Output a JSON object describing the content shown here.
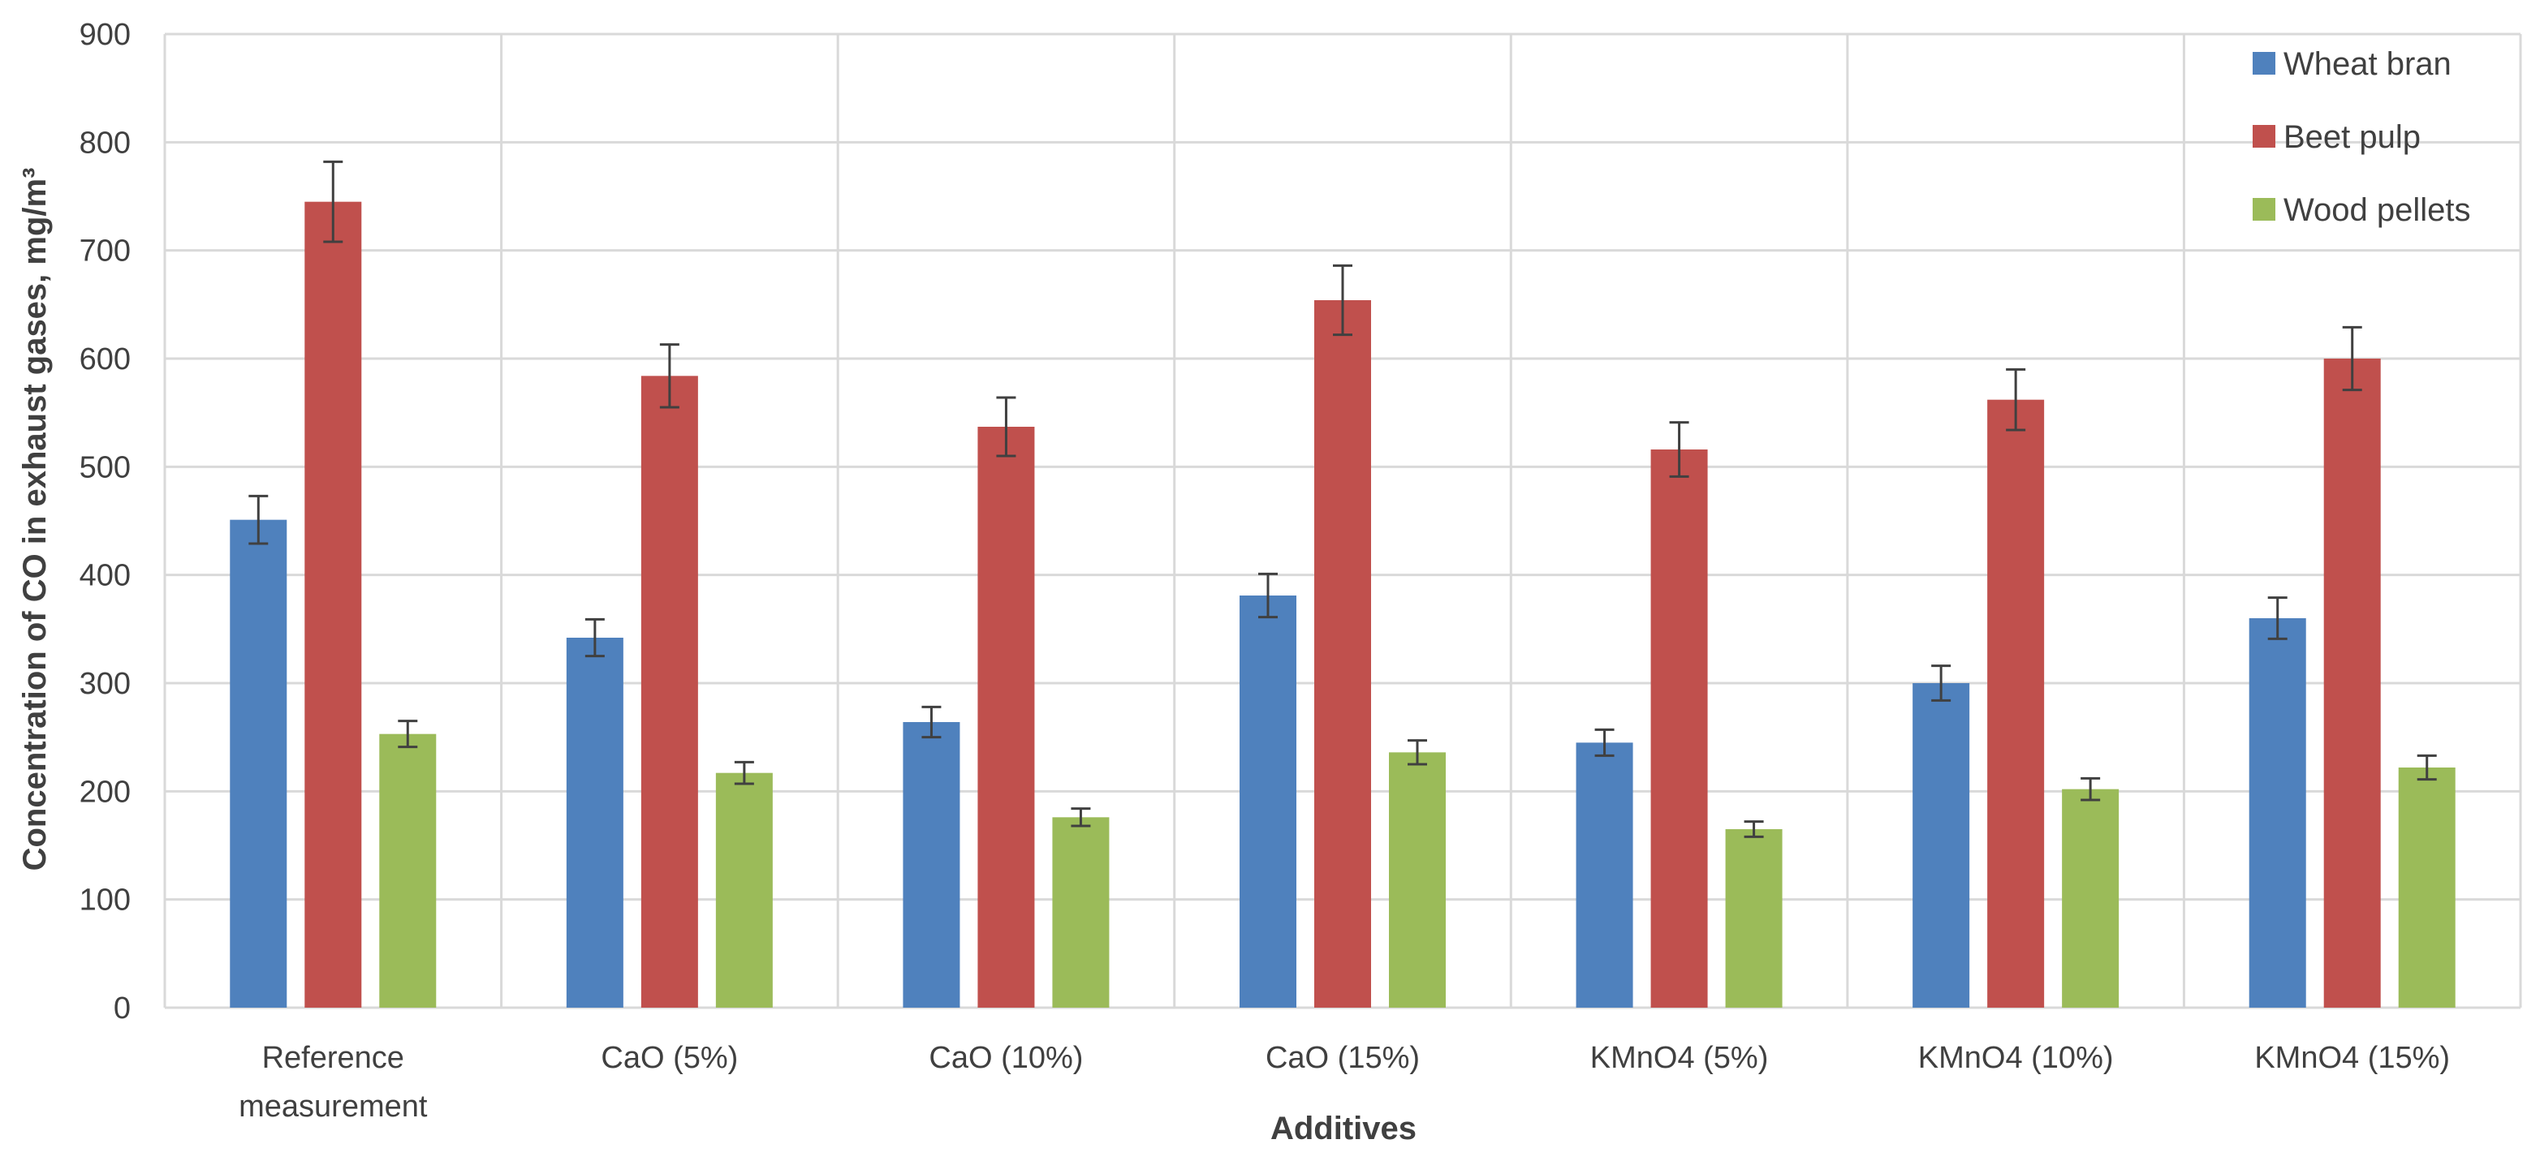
{
  "chart_data": {
    "type": "bar",
    "title": "",
    "xlabel": "Additives",
    "ylabel": "Concentration of  CO in exhaust gases, mg/m³",
    "ylim": [
      0,
      900
    ],
    "yticks": [
      0,
      100,
      200,
      300,
      400,
      500,
      600,
      700,
      800,
      900
    ],
    "grid": true,
    "legend_position": "top-right",
    "categories": [
      [
        "Reference",
        "measurement"
      ],
      [
        "CaO (5%)"
      ],
      [
        "CaO (10%)"
      ],
      [
        "CaO (15%)"
      ],
      [
        "KMnO4 (5%)"
      ],
      [
        "KMnO4 (10%)"
      ],
      [
        "KMnO4 (15%)"
      ]
    ],
    "series": [
      {
        "name": "Wheat bran",
        "color": "#4f81bd",
        "values": [
          451,
          342,
          264,
          381,
          245,
          300,
          360
        ],
        "errors": [
          22,
          17,
          14,
          20,
          12,
          16,
          19
        ]
      },
      {
        "name": "Beet pulp",
        "color": "#c0504d",
        "values": [
          745,
          584,
          537,
          654,
          516,
          562,
          600
        ],
        "errors": [
          37,
          29,
          27,
          32,
          25,
          28,
          29
        ]
      },
      {
        "name": "Wood pellets",
        "color": "#9bbb59",
        "values": [
          253,
          217,
          176,
          236,
          165,
          202,
          222
        ],
        "errors": [
          12,
          10,
          8,
          11,
          7,
          10,
          11
        ]
      }
    ]
  }
}
